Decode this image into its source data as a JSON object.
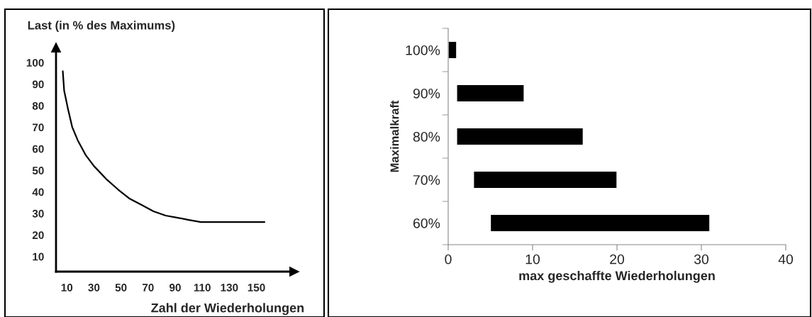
{
  "chart_data": [
    {
      "type": "line",
      "ylabel": "Last (in % des Maximums)",
      "xlabel": "Zahl der Wiederholungen",
      "color": "#000000",
      "x": [
        7,
        8,
        11,
        14,
        18,
        24,
        30,
        39,
        48,
        56,
        65,
        74,
        83,
        92,
        100,
        109,
        156
      ],
      "values": [
        96,
        87,
        78,
        70,
        64,
        57,
        52,
        46,
        41,
        37,
        34,
        31,
        29,
        28,
        27,
        26,
        26
      ],
      "xlim": [
        2,
        178
      ],
      "ylim": [
        3,
        107
      ],
      "xticks": [
        10,
        30,
        50,
        70,
        90,
        110,
        130,
        150
      ],
      "yticks": [
        10,
        20,
        30,
        40,
        50,
        60,
        70,
        80,
        90,
        100
      ]
    },
    {
      "type": "bar",
      "orientation": "horizontal",
      "xlabel": "max geschaffte Wiederholungen",
      "ylabel": "Maximalkraft",
      "color": "#000000",
      "categories": [
        "100%",
        "90%",
        "80%",
        "70%",
        "60%"
      ],
      "base": [
        0,
        1,
        1,
        3,
        5
      ],
      "values": [
        1,
        8,
        15,
        17,
        26
      ],
      "xlim": [
        0,
        40
      ],
      "xticks": [
        0,
        10,
        20,
        30,
        40
      ]
    }
  ]
}
